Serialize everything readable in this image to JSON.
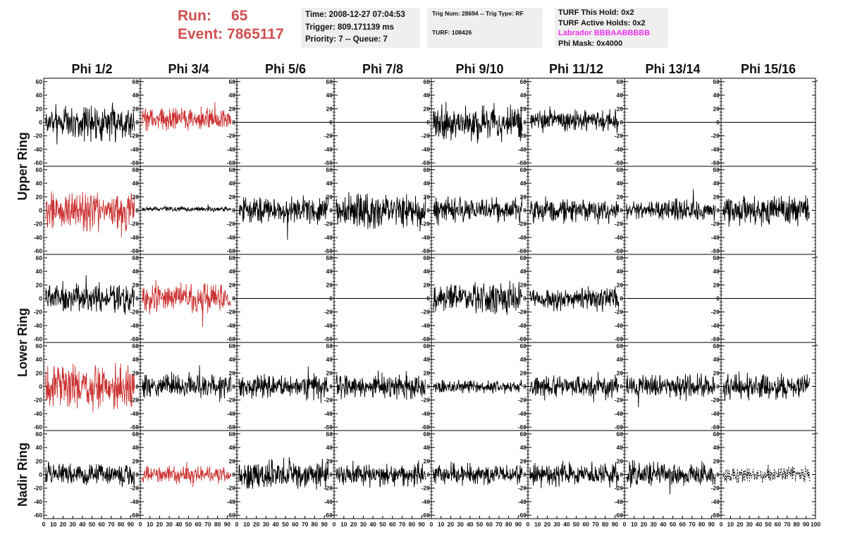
{
  "header": {
    "run_label": "Run:",
    "run_value": "65",
    "event_label": "Event:",
    "event_value": "7865117"
  },
  "info_time": {
    "time": "Time: 2008-12-27 07:04:53",
    "trigger": "Trigger: 809.171139 ms",
    "priority": "Priority: 7 -- Queue: 7"
  },
  "info_trig": {
    "trig": "Trig Num: 28694 -- Trig Type: RF",
    "turf": "TURF: 108426"
  },
  "info_turf": {
    "this_hold": "TURF This Hold: 0x2",
    "active_holds": "TURF Active Holds: 0x2",
    "labrador": "Labrador BBBAABBBBB",
    "phi_mask": "Phi Mask: 0x4000"
  },
  "chart_data": {
    "type": "line",
    "phi_columns": [
      "Phi 1/2",
      "Phi 3/4",
      "Phi 5/6",
      "Phi 7/8",
      "Phi 9/10",
      "Phi 11/12",
      "Phi 13/14",
      "Phi 15/16"
    ],
    "rings": [
      "Upper Ring",
      "Lower Ring",
      "Nadir Ring"
    ],
    "xlim": [
      0,
      100
    ],
    "ylim": [
      -65,
      65
    ],
    "yticks": [
      60,
      40,
      20,
      0,
      -20,
      -40,
      -60
    ],
    "xticks": [
      0,
      10,
      20,
      30,
      40,
      50,
      60,
      70,
      80,
      90,
      100
    ],
    "colors": {
      "normal": "#000000",
      "triggered": "#cc3333",
      "flat": "#000000"
    },
    "rows": [
      {
        "ring": "Upper Ring",
        "panels": [
          {
            "style": "normal",
            "amp": 22
          },
          {
            "style": "triggered",
            "amp": 14,
            "offset": 5
          },
          {
            "style": "flat"
          },
          {
            "style": "flat"
          },
          {
            "style": "normal",
            "amp": 22
          },
          {
            "style": "normal",
            "amp": 14,
            "offset": 3
          },
          {
            "style": "flat"
          },
          {
            "style": "flat"
          }
        ]
      },
      {
        "ring": "Upper Ring",
        "panels": [
          {
            "style": "triggered",
            "amp": 26
          },
          {
            "style": "normal",
            "amp": 3,
            "offset": 2
          },
          {
            "style": "normal",
            "amp": 18
          },
          {
            "style": "normal",
            "amp": 22
          },
          {
            "style": "normal",
            "amp": 16
          },
          {
            "style": "normal",
            "amp": 16
          },
          {
            "style": "normal",
            "amp": 13
          },
          {
            "style": "normal",
            "amp": 18
          }
        ]
      },
      {
        "ring": "Lower Ring",
        "panels": [
          {
            "style": "normal",
            "amp": 18
          },
          {
            "style": "triggered",
            "amp": 20
          },
          {
            "style": "flat"
          },
          {
            "style": "flat"
          },
          {
            "style": "normal",
            "amp": 20
          },
          {
            "style": "normal",
            "amp": 14
          },
          {
            "style": "flat"
          },
          {
            "style": "flat"
          }
        ]
      },
      {
        "ring": "Lower Ring",
        "panels": [
          {
            "style": "triggered",
            "amp": 28
          },
          {
            "style": "normal",
            "amp": 16
          },
          {
            "style": "normal",
            "amp": 15
          },
          {
            "style": "normal",
            "amp": 15
          },
          {
            "style": "normal",
            "amp": 8
          },
          {
            "style": "normal",
            "amp": 14
          },
          {
            "style": "normal",
            "amp": 15
          },
          {
            "style": "normal",
            "amp": 16
          }
        ]
      },
      {
        "ring": "Nadir Ring",
        "panels": [
          {
            "style": "normal",
            "amp": 14
          },
          {
            "style": "triggered",
            "amp": 12
          },
          {
            "style": "normal",
            "amp": 18
          },
          {
            "style": "normal",
            "amp": 15
          },
          {
            "style": "normal",
            "amp": 13
          },
          {
            "style": "normal",
            "amp": 15
          },
          {
            "style": "normal",
            "amp": 15
          },
          {
            "style": "dashed",
            "amp": 10
          }
        ]
      }
    ]
  }
}
